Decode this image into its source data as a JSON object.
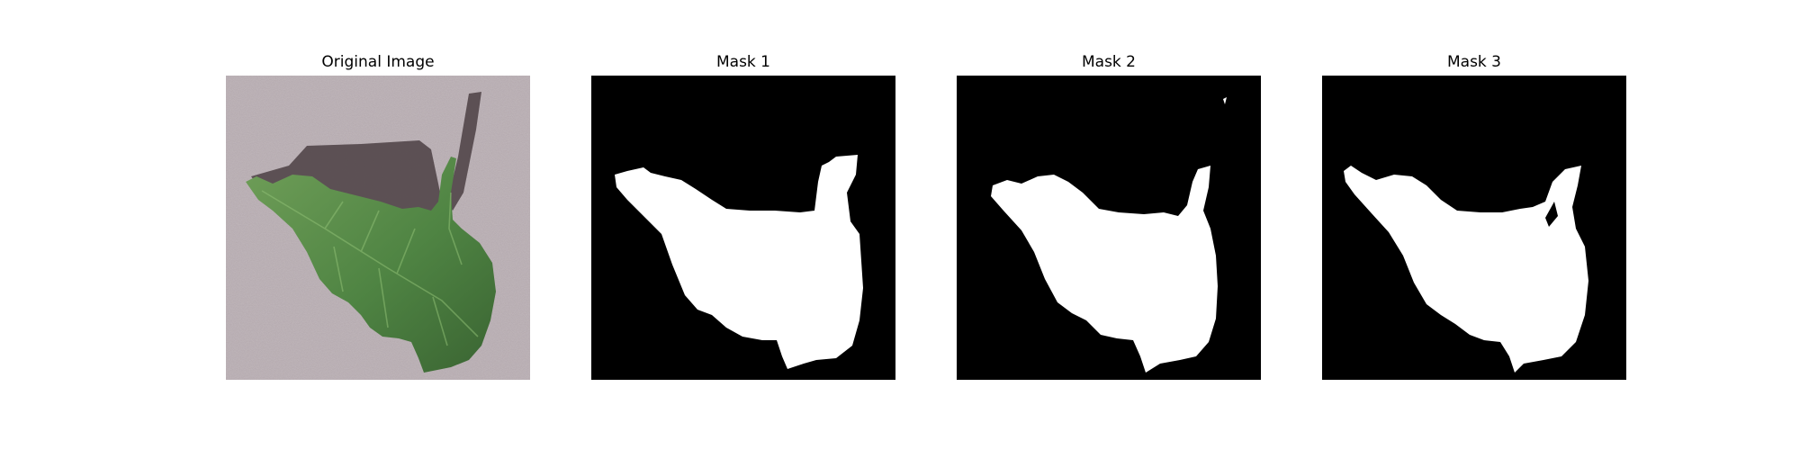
{
  "figure": {
    "panels": [
      {
        "title": "Original Image"
      },
      {
        "title": "Mask 1"
      },
      {
        "title": "Mask 2"
      },
      {
        "title": "Mask 3"
      }
    ]
  },
  "colors": {
    "background": "#b3a8ad",
    "leaf_dark": "#3f6e36",
    "leaf_light": "#6f9e58",
    "shadow": "#4b3f43",
    "mask_background": "#000000",
    "mask_foreground": "#ffffff"
  }
}
